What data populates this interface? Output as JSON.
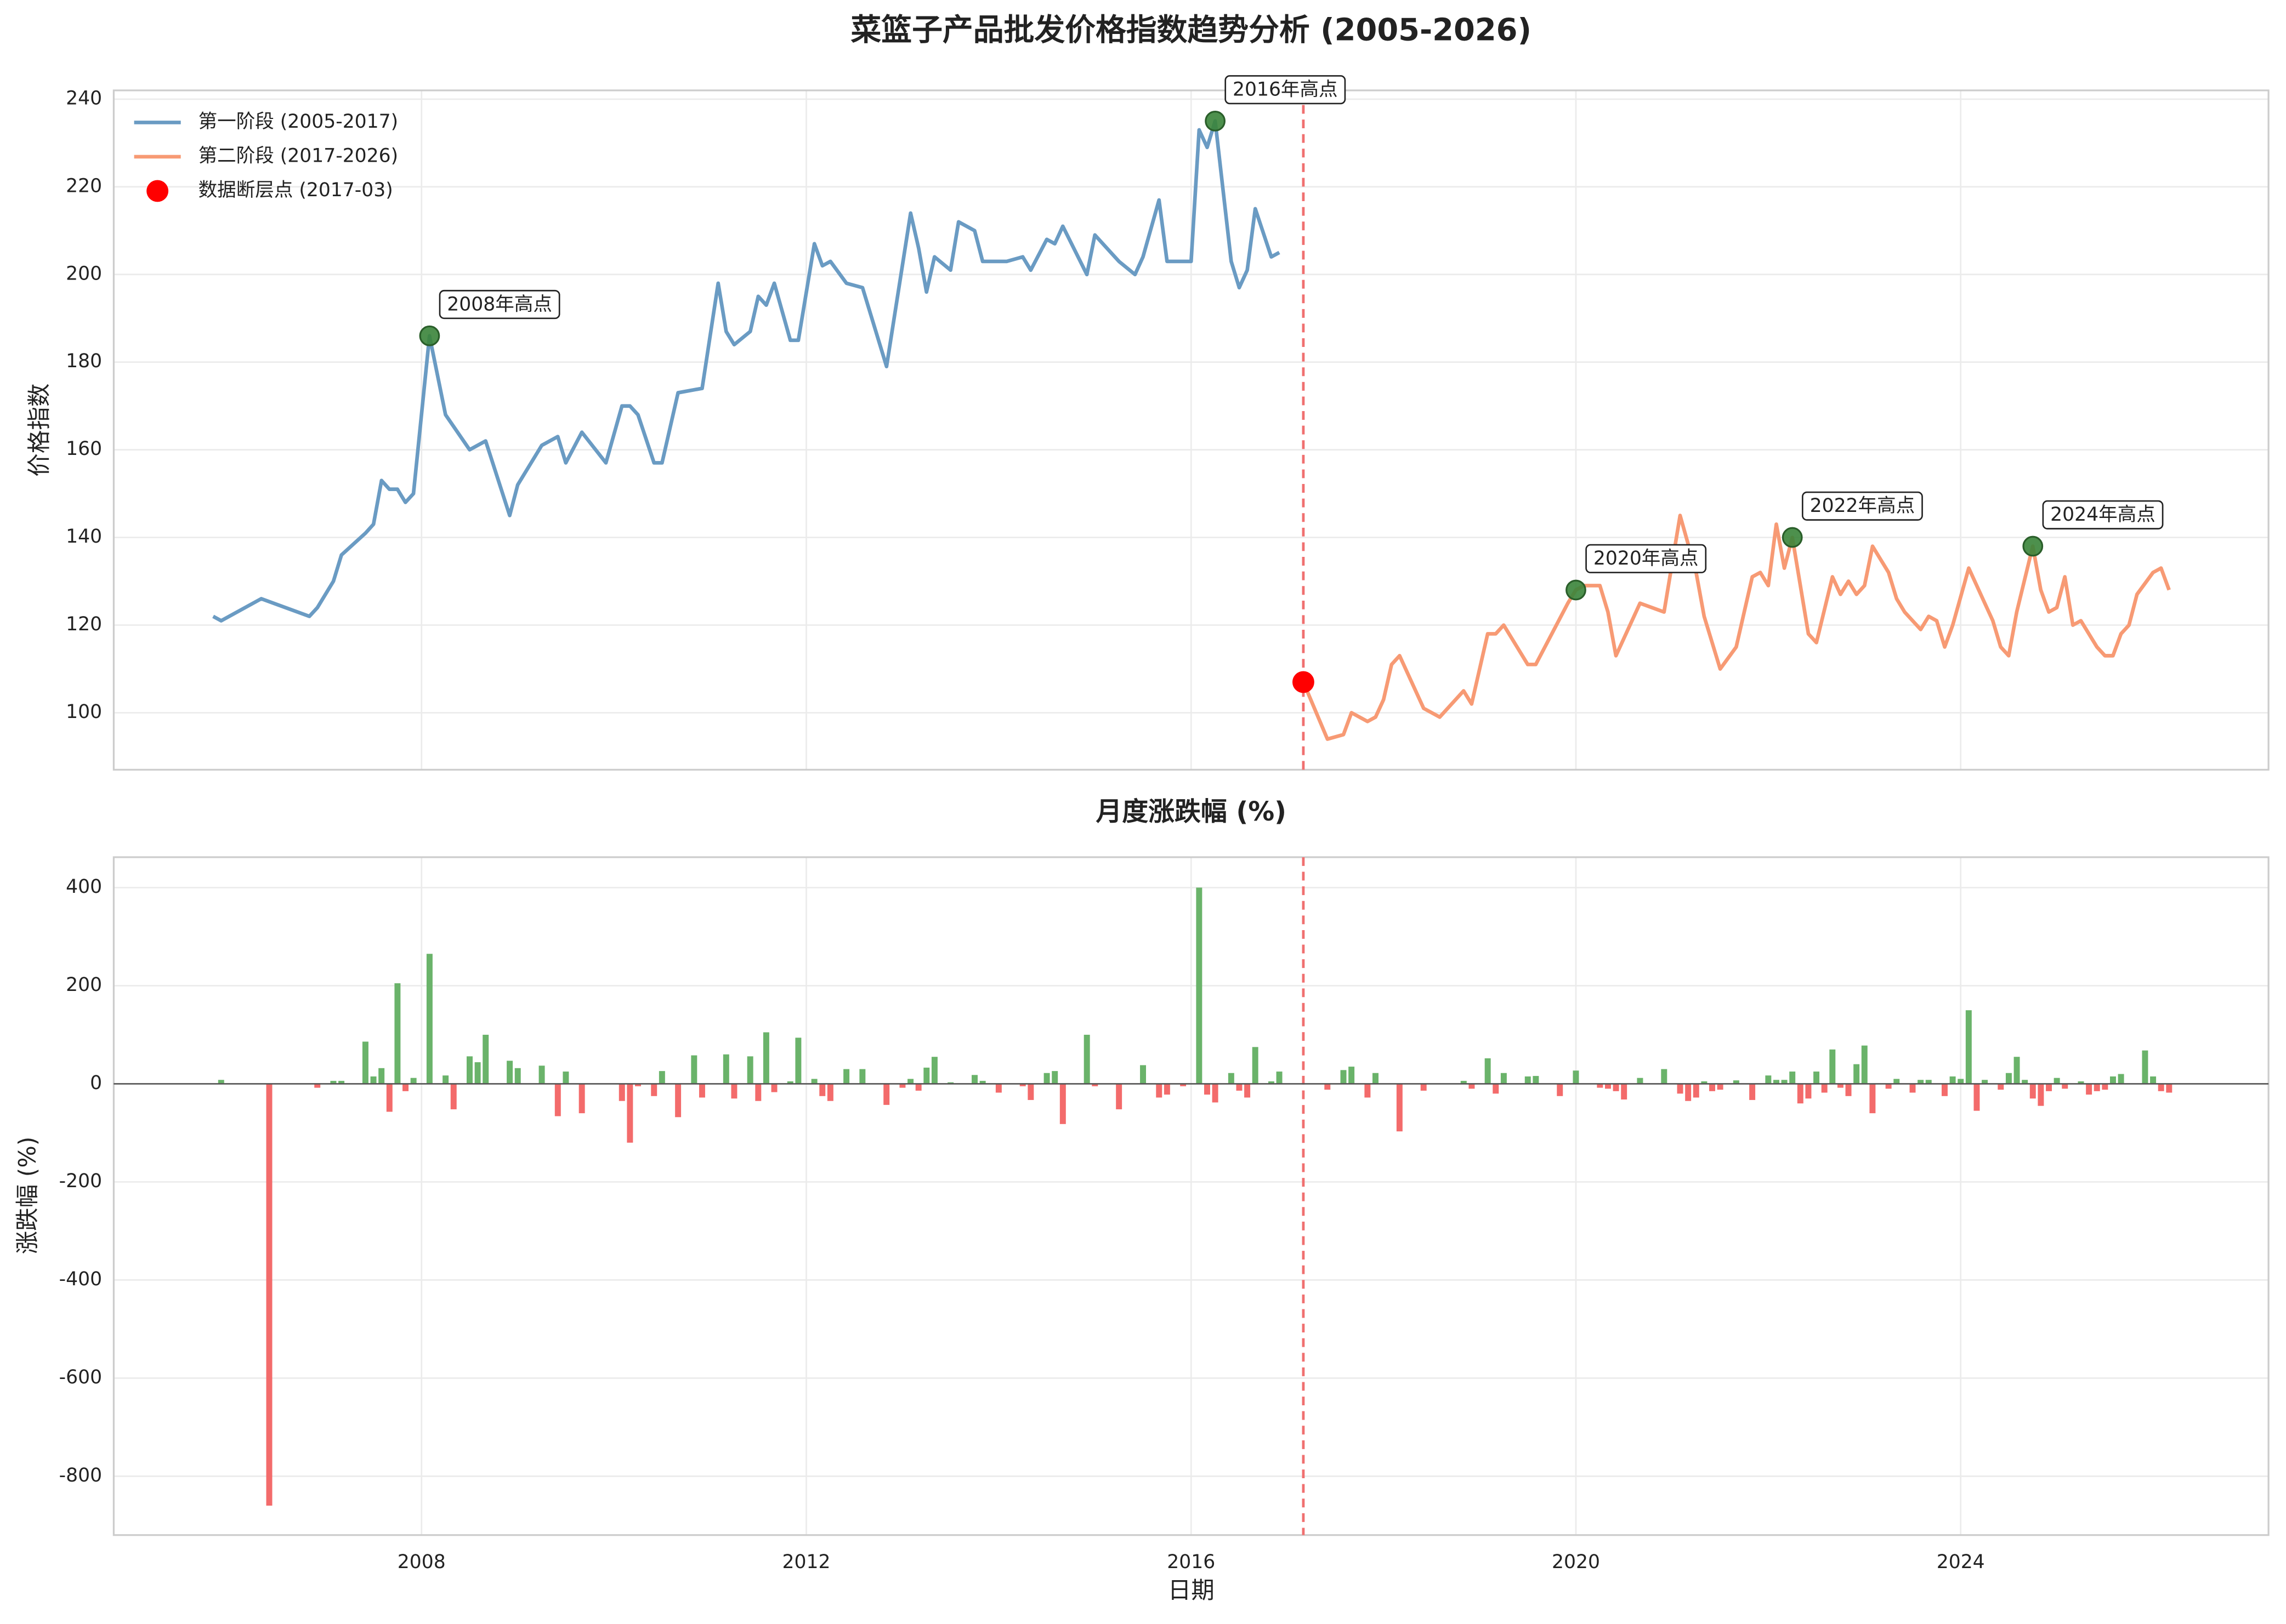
{
  "chart_data": [
    {
      "type": "line",
      "title": "菜篮子产品批发价格指数趋势分析 (2005-2026)",
      "ylabel": "价格指数",
      "ylim": [
        87,
        242
      ],
      "yticks": [
        100,
        120,
        140,
        160,
        180,
        200,
        220,
        240
      ],
      "grid": true,
      "legend": "upper left",
      "series": [
        {
          "name": "第一阶段 (2005-2017)",
          "color": "#6a9bc3",
          "x": [
            "2005-11",
            "2005-12",
            "2006-05",
            "2006-11",
            "2006-12",
            "2007-02",
            "2007-03",
            "2007-06",
            "2007-07",
            "2007-08",
            "2007-09",
            "2007-10",
            "2007-11",
            "2007-12",
            "2008-02",
            "2008-04",
            "2008-07",
            "2008-09",
            "2008-12",
            "2009-01",
            "2009-04",
            "2009-06",
            "2009-07",
            "2009-09",
            "2009-12",
            "2010-02",
            "2010-03",
            "2010-04",
            "2010-06",
            "2010-07",
            "2010-09",
            "2010-12",
            "2011-02",
            "2011-03",
            "2011-04",
            "2011-06",
            "2011-07",
            "2011-08",
            "2011-09",
            "2011-11",
            "2011-12",
            "2012-02",
            "2012-03",
            "2012-04",
            "2012-06",
            "2012-08",
            "2012-11",
            "2013-02",
            "2013-03",
            "2013-04",
            "2013-05",
            "2013-07",
            "2013-08",
            "2013-10",
            "2013-11",
            "2014-02",
            "2014-04",
            "2014-05",
            "2014-07",
            "2014-08",
            "2014-09",
            "2014-12",
            "2015-01",
            "2015-04",
            "2015-06",
            "2015-07",
            "2015-09",
            "2015-10",
            "2015-12",
            "2016-01",
            "2016-02",
            "2016-03",
            "2016-04",
            "2016-06",
            "2016-07",
            "2016-08",
            "2016-09",
            "2016-11",
            "2016-12"
          ],
          "values": [
            122,
            121,
            126,
            122,
            124,
            130,
            136,
            141,
            143,
            153,
            151,
            151,
            148,
            150,
            186,
            168,
            160,
            162,
            145,
            152,
            161,
            163,
            157,
            164,
            157,
            170,
            170,
            168,
            157,
            157,
            173,
            174,
            198,
            187,
            184,
            187,
            195,
            193,
            198,
            185,
            185,
            207,
            202,
            203,
            198,
            197,
            179,
            214,
            206,
            196,
            204,
            201,
            212,
            210,
            203,
            203,
            204,
            201,
            208,
            207,
            211,
            200,
            209,
            203,
            200,
            204,
            217,
            203,
            203,
            203,
            233,
            229,
            235,
            203,
            197,
            201,
            215,
            204,
            205
          ]
        },
        {
          "name": "第二阶段 (2017-2026)",
          "color": "#f79a74",
          "x": [
            "2017-03",
            "2017-06",
            "2017-08",
            "2017-09",
            "2017-11",
            "2017-12",
            "2018-01",
            "2018-02",
            "2018-03",
            "2018-06",
            "2018-08",
            "2018-11",
            "2018-12",
            "2019-02",
            "2019-03",
            "2019-04",
            "2019-05",
            "2019-07",
            "2019-08",
            "2019-12",
            "2020-01",
            "2020-02",
            "2020-04",
            "2020-05",
            "2020-06",
            "2020-09",
            "2020-12",
            "2021-02",
            "2021-04",
            "2021-05",
            "2021-07",
            "2021-09",
            "2021-11",
            "2021-12",
            "2022-01",
            "2022-02",
            "2022-03",
            "2022-04",
            "2022-06",
            "2022-07",
            "2022-09",
            "2022-10",
            "2022-11",
            "2022-12",
            "2023-01",
            "2023-02",
            "2023-04",
            "2023-05",
            "2023-06",
            "2023-08",
            "2023-09",
            "2023-10",
            "2023-11",
            "2023-12",
            "2024-02",
            "2024-04",
            "2024-05",
            "2024-06",
            "2024-07",
            "2024-08",
            "2024-10",
            "2024-11",
            "2024-12",
            "2025-01",
            "2025-02",
            "2025-03",
            "2025-04",
            "2025-06",
            "2025-07",
            "2025-08",
            "2025-09",
            "2025-10",
            "2025-11",
            "2026-01",
            "2026-02",
            "2026-03"
          ],
          "values": [
            107,
            94,
            95,
            100,
            98,
            99,
            103,
            111,
            113,
            101,
            99,
            105,
            102,
            118,
            118,
            120,
            117,
            111,
            111,
            125,
            128,
            129,
            129,
            123,
            113,
            125,
            123,
            145,
            132,
            122,
            110,
            115,
            131,
            132,
            129,
            143,
            133,
            140,
            118,
            116,
            131,
            127,
            130,
            127,
            129,
            138,
            132,
            126,
            123,
            119,
            122,
            121,
            115,
            120,
            133,
            125,
            121,
            115,
            113,
            123,
            138,
            128,
            123,
            124,
            131,
            120,
            121,
            115,
            113,
            113,
            118,
            120,
            127,
            132,
            133,
            128
          ]
        }
      ],
      "break_point": {
        "name": "数据断层点 (2017-03)",
        "x": "2017-03",
        "value": 107,
        "color": "#ff0000"
      },
      "highlight_color": "#3a843a",
      "highlights": [
        {
          "label": "2008年高点",
          "x": "2008-02",
          "value": 186
        },
        {
          "label": "2016年高点",
          "x": "2016-04",
          "value": 235
        },
        {
          "label": "2020年高点",
          "x": "2020-01",
          "value": 128
        },
        {
          "label": "2022年高点",
          "x": "2022-04",
          "value": 140
        },
        {
          "label": "2024年高点",
          "x": "2024-10",
          "value": 138
        }
      ]
    },
    {
      "type": "bar",
      "title": "月度涨跌幅 (%)",
      "xlabel": "日期",
      "ylabel": "涨跌幅 (%)",
      "xlim": [
        2004.8,
        2027.2
      ],
      "xticks": [
        2008,
        2012,
        2016,
        2020,
        2024
      ],
      "ylim": [
        -920,
        462
      ],
      "yticks": [
        -800,
        -600,
        -400,
        -200,
        0,
        200,
        400
      ],
      "grid": true,
      "positive_color": "#6ab36a",
      "negative_color": "#f36b6b",
      "x": [
        "2005-12",
        "2006-06",
        "2006-12",
        "2007-02",
        "2007-03",
        "2007-06",
        "2007-07",
        "2007-08",
        "2007-09",
        "2007-10",
        "2007-11",
        "2007-12",
        "2008-02",
        "2008-04",
        "2008-05",
        "2008-07",
        "2008-08",
        "2008-09",
        "2008-12",
        "2009-01",
        "2009-04",
        "2009-06",
        "2009-07",
        "2009-09",
        "2010-02",
        "2010-03",
        "2010-04",
        "2010-06",
        "2010-07",
        "2010-09",
        "2010-11",
        "2010-12",
        "2011-03",
        "2011-04",
        "2011-06",
        "2011-07",
        "2011-08",
        "2011-09",
        "2011-11",
        "2011-12",
        "2012-02",
        "2012-03",
        "2012-04",
        "2012-06",
        "2012-08",
        "2012-11",
        "2013-01",
        "2013-02",
        "2013-03",
        "2013-04",
        "2013-05",
        "2013-07",
        "2013-10",
        "2013-11",
        "2014-01",
        "2014-04",
        "2014-05",
        "2014-07",
        "2014-08",
        "2014-09",
        "2014-12",
        "2015-01",
        "2015-04",
        "2015-07",
        "2015-09",
        "2015-10",
        "2015-12",
        "2016-02",
        "2016-03",
        "2016-04",
        "2016-06",
        "2016-07",
        "2016-08",
        "2016-09",
        "2016-11",
        "2016-12",
        "2017-06",
        "2017-08",
        "2017-09",
        "2017-11",
        "2017-12",
        "2018-03",
        "2018-06",
        "2018-11",
        "2018-12",
        "2019-02",
        "2019-03",
        "2019-04",
        "2019-07",
        "2019-08",
        "2019-11",
        "2020-01",
        "2020-04",
        "2020-05",
        "2020-06",
        "2020-07",
        "2020-09",
        "2020-12",
        "2021-02",
        "2021-03",
        "2021-04",
        "2021-05",
        "2021-06",
        "2021-07",
        "2021-09",
        "2021-11",
        "2022-01",
        "2022-02",
        "2022-03",
        "2022-04",
        "2022-05",
        "2022-06",
        "2022-07",
        "2022-08",
        "2022-09",
        "2022-10",
        "2022-11",
        "2022-12",
        "2023-01",
        "2023-02",
        "2023-04",
        "2023-05",
        "2023-07",
        "2023-08",
        "2023-09",
        "2023-11",
        "2023-12",
        "2024-01",
        "2024-02",
        "2024-03",
        "2024-04",
        "2024-06",
        "2024-07",
        "2024-08",
        "2024-09",
        "2024-10",
        "2024-11",
        "2024-12",
        "2025-01",
        "2025-02",
        "2025-04",
        "2025-05",
        "2025-06",
        "2025-07",
        "2025-08",
        "2025-09",
        "2025-12",
        "2026-01",
        "2026-02",
        "2026-03"
      ],
      "values": [
        8,
        -860,
        -8,
        6,
        6,
        86,
        15,
        32,
        -57,
        205,
        -15,
        12,
        265,
        17,
        -52,
        56,
        44,
        100,
        47,
        32,
        37,
        -66,
        25,
        -60,
        -35,
        -120,
        -5,
        -25,
        26,
        -68,
        58,
        -28,
        60,
        -30,
        56,
        -35,
        105,
        -17,
        5,
        94,
        10,
        -25,
        -35,
        30,
        30,
        -43,
        -8,
        10,
        -14,
        33,
        55,
        3,
        18,
        6,
        -18,
        -5,
        -33,
        22,
        26,
        -82,
        100,
        -5,
        -52,
        38,
        -28,
        -22,
        -5,
        400,
        -22,
        -38,
        22,
        -14,
        -28,
        75,
        5,
        25,
        -12,
        28,
        35,
        -28,
        22,
        -97,
        -14,
        6,
        -10,
        52,
        -20,
        22,
        15,
        16,
        -25,
        27,
        -8,
        -10,
        -15,
        -32,
        12,
        30,
        -20,
        -35,
        -28,
        5,
        -15,
        -12,
        7,
        -33,
        17,
        8,
        8,
        25,
        -40,
        -30,
        25,
        -18,
        70,
        -8,
        -25,
        40,
        78,
        -60,
        -10,
        10,
        -18,
        8,
        8,
        -25,
        15,
        10,
        150,
        -55,
        8,
        -12,
        22,
        55,
        8,
        -30,
        -45,
        -15,
        12,
        -10,
        5,
        -22,
        -15,
        -12,
        15,
        20,
        68,
        15,
        -15,
        -18
      ]
    }
  ]
}
